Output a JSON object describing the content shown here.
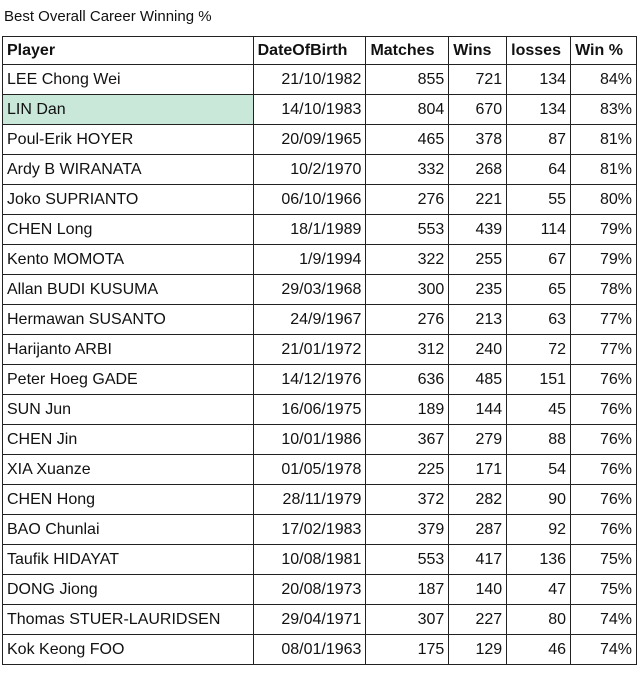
{
  "title": "Best Overall Career Winning %",
  "table": {
    "header": [
      "Player",
      "DateOfBirth",
      "Matches",
      "Wins",
      "losses",
      "Win %"
    ],
    "highlighted_row": 1,
    "rows": [
      [
        "LEE Chong Wei",
        "21/10/1982",
        "855",
        "721",
        "134",
        "84%"
      ],
      [
        "LIN Dan",
        "14/10/1983",
        "804",
        "670",
        "134",
        "83%"
      ],
      [
        "Poul-Erik HOYER",
        "20/09/1965",
        "465",
        "378",
        "87",
        "81%"
      ],
      [
        "Ardy B WIRANATA",
        "10/2/1970",
        "332",
        "268",
        "64",
        "81%"
      ],
      [
        "Joko SUPRIANTO",
        "06/10/1966",
        "276",
        "221",
        "55",
        "80%"
      ],
      [
        "CHEN Long",
        "18/1/1989",
        "553",
        "439",
        "114",
        "79%"
      ],
      [
        "Kento MOMOTA",
        "1/9/1994",
        "322",
        "255",
        "67",
        "79%"
      ],
      [
        "Allan BUDI KUSUMA",
        "29/03/1968",
        "300",
        "235",
        "65",
        "78%"
      ],
      [
        "Hermawan SUSANTO",
        "24/9/1967",
        "276",
        "213",
        "63",
        "77%"
      ],
      [
        "Harijanto ARBI",
        "21/01/1972",
        "312",
        "240",
        "72",
        "77%"
      ],
      [
        "Peter Hoeg GADE",
        "14/12/1976",
        "636",
        "485",
        "151",
        "76%"
      ],
      [
        "SUN Jun",
        "16/06/1975",
        "189",
        "144",
        "45",
        "76%"
      ],
      [
        "CHEN Jin",
        "10/01/1986",
        "367",
        "279",
        "88",
        "76%"
      ],
      [
        "XIA Xuanze",
        "01/05/1978",
        "225",
        "171",
        "54",
        "76%"
      ],
      [
        "CHEN Hong",
        "28/11/1979",
        "372",
        "282",
        "90",
        "76%"
      ],
      [
        "BAO Chunlai",
        "17/02/1983",
        "379",
        "287",
        "92",
        "76%"
      ],
      [
        "Taufik HIDAYAT",
        "10/08/1981",
        "553",
        "417",
        "136",
        "75%"
      ],
      [
        "DONG Jiong",
        "20/08/1973",
        "187",
        "140",
        "47",
        "75%"
      ],
      [
        "Thomas STUER-LAURIDSEN",
        "29/04/1971",
        "307",
        "227",
        "80",
        "74%"
      ],
      [
        "Kok Keong FOO",
        "08/01/1963",
        "175",
        "129",
        "46",
        "74%"
      ]
    ]
  }
}
